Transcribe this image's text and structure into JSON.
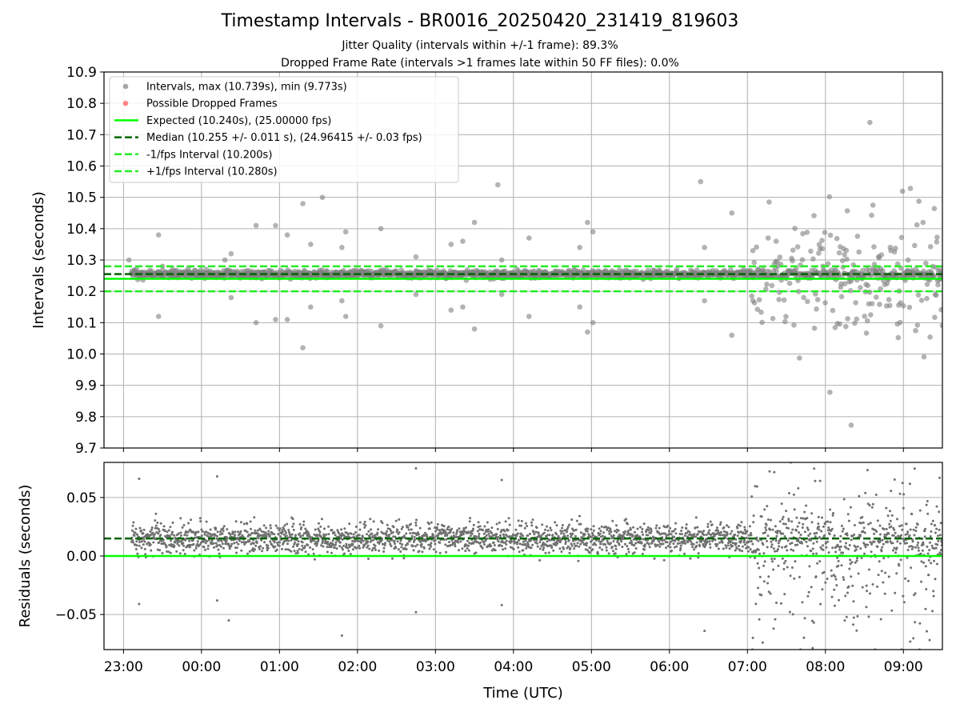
{
  "title": "Timestamp Intervals - BR0016_20250420_231419_819603",
  "subtitle1": "Jitter Quality (intervals within +/-1 frame): 89.3%",
  "subtitle2": "Dropped Frame Rate (intervals >1 frames late within 50 FF files): 0.0%",
  "colors": {
    "points": "#808080",
    "dropped": "#ff5555",
    "expected": "#00ff00",
    "median": "#006400",
    "bounds": "#22ee22"
  },
  "chart_data": [
    {
      "type": "scatter",
      "ylabel": "Intervals (seconds)",
      "ylim": [
        9.7,
        10.9
      ],
      "yticks": [
        9.7,
        9.8,
        9.9,
        10.0,
        10.1,
        10.2,
        10.3,
        10.4,
        10.5,
        10.6,
        10.7,
        10.8,
        10.9
      ],
      "xlim_hours": [
        22.75,
        33.5
      ],
      "grid": true,
      "legend_position": "top-left",
      "legend": [
        "Intervals, max (10.739s), min (9.773s)",
        "Possible Dropped Frames",
        "Expected (10.240s), (25.00000 fps)",
        "Median (10.255 +/- 0.011 s), (24.96415 +/- 0.03 fps)",
        "-1/fps Interval (10.200s)",
        "+1/fps Interval (10.280s)"
      ],
      "lines": {
        "expected": 10.24,
        "median": 10.255,
        "minus_one_fps": 10.2,
        "plus_one_fps": 10.28
      },
      "outliers": [
        [
          23.07,
          10.3
        ],
        [
          23.45,
          10.38
        ],
        [
          23.45,
          10.12
        ],
        [
          23.5,
          10.28
        ],
        [
          24.3,
          10.3
        ],
        [
          24.38,
          10.32
        ],
        [
          24.38,
          10.18
        ],
        [
          24.7,
          10.41
        ],
        [
          24.7,
          10.1
        ],
        [
          24.95,
          10.41
        ],
        [
          24.95,
          10.11
        ],
        [
          25.1,
          10.38
        ],
        [
          25.1,
          10.11
        ],
        [
          25.3,
          10.48
        ],
        [
          25.3,
          10.02
        ],
        [
          25.4,
          10.35
        ],
        [
          25.4,
          10.15
        ],
        [
          25.55,
          10.5
        ],
        [
          25.8,
          10.34
        ],
        [
          25.8,
          10.17
        ],
        [
          25.85,
          10.39
        ],
        [
          25.85,
          10.12
        ],
        [
          26.3,
          10.4
        ],
        [
          26.3,
          10.09
        ],
        [
          26.75,
          10.31
        ],
        [
          26.75,
          10.19
        ],
        [
          27.2,
          10.35
        ],
        [
          27.2,
          10.14
        ],
        [
          27.35,
          10.36
        ],
        [
          27.35,
          10.15
        ],
        [
          27.5,
          10.42
        ],
        [
          27.5,
          10.08
        ],
        [
          27.8,
          10.54
        ],
        [
          27.85,
          10.3
        ],
        [
          27.85,
          10.19
        ],
        [
          28.2,
          10.37
        ],
        [
          28.2,
          10.12
        ],
        [
          28.85,
          10.34
        ],
        [
          28.85,
          10.15
        ],
        [
          28.95,
          10.42
        ],
        [
          28.95,
          10.07
        ],
        [
          29.02,
          10.39
        ],
        [
          29.02,
          10.1
        ],
        [
          30.4,
          10.55
        ],
        [
          30.45,
          10.34
        ],
        [
          30.45,
          10.17
        ],
        [
          30.8,
          10.45
        ],
        [
          30.8,
          10.06
        ],
        [
          31.07,
          10.33
        ],
        [
          31.07,
          10.17
        ]
      ],
      "cluster": {
        "x_from": 31.05,
        "x_to": 33.5,
        "y_min": 9.773,
        "y_max": 10.739,
        "center": 10.24
      }
    },
    {
      "type": "scatter",
      "ylabel": "Residuals (seconds)",
      "xlabel": "Time (UTC)",
      "ylim": [
        -0.08,
        0.08
      ],
      "yticks": [
        -0.05,
        0.0,
        0.05
      ],
      "ytick_labels": [
        "−0.05",
        "0.00",
        "0.05"
      ],
      "xlim_hours": [
        22.75,
        33.5
      ],
      "xticks_hours": [
        23,
        24,
        25,
        26,
        27,
        28,
        29,
        30,
        31,
        32,
        33
      ],
      "xtick_labels": [
        "23:00",
        "00:00",
        "01:00",
        "02:00",
        "03:00",
        "04:00",
        "05:00",
        "06:00",
        "07:00",
        "08:00",
        "09:00"
      ],
      "grid": true,
      "lines": {
        "zero": 0.0,
        "median_offset": 0.015
      },
      "outliers": [
        [
          23.2,
          0.066
        ],
        [
          23.2,
          -0.041
        ],
        [
          24.2,
          0.068
        ],
        [
          24.2,
          -0.038
        ],
        [
          24.35,
          -0.055
        ],
        [
          25.8,
          -0.068
        ],
        [
          26.75,
          0.075
        ],
        [
          26.75,
          -0.048
        ],
        [
          27.85,
          0.065
        ],
        [
          27.85,
          -0.042
        ],
        [
          30.45,
          -0.064
        ],
        [
          31.07,
          -0.07
        ]
      ],
      "cluster": {
        "x_from": 31.05,
        "x_to": 33.5,
        "y_min": -0.08,
        "y_max": 0.08
      }
    }
  ]
}
